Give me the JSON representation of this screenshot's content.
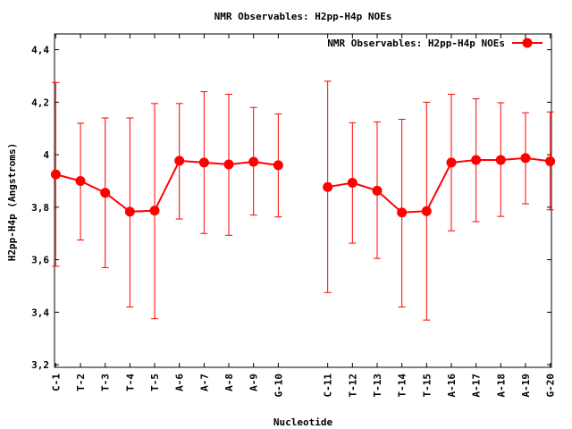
{
  "chart_data": {
    "type": "line",
    "title": "NMR Observables: H2pp-H4p NOEs",
    "xlabel": "Nucleotide",
    "ylabel": "H2pp-H4p (Angstroms)",
    "ylim": [
      3.2,
      4.45
    ],
    "yticks": [
      3.2,
      3.4,
      3.6,
      3.8,
      4.0,
      4.2,
      4.4
    ],
    "ytick_labels": [
      "3,2",
      "3,4",
      "3,6",
      "3,8",
      "4",
      "4,2",
      "4,4"
    ],
    "grid": false,
    "legend_position": "top-right",
    "color": "#ff0000",
    "categories": [
      "C-1",
      "T-2",
      "T-3",
      "T-4",
      "T-5",
      "A-6",
      "A-7",
      "A-8",
      "A-9",
      "G-10",
      "C-11",
      "T-12",
      "T-13",
      "T-14",
      "T-15",
      "A-16",
      "A-17",
      "A-18",
      "A-19",
      "G-20"
    ],
    "series": [
      {
        "name": "NMR Observables: H2pp-H4p NOEs",
        "segments": [
          [
            {
              "x": 1,
              "y": 3.925,
              "low": 3.575,
              "high": 4.275
            },
            {
              "x": 2,
              "y": 3.9,
              "low": 3.675,
              "high": 4.12
            },
            {
              "x": 3,
              "y": 3.855,
              "low": 3.57,
              "high": 4.14
            },
            {
              "x": 4,
              "y": 3.783,
              "low": 3.42,
              "high": 4.14
            },
            {
              "x": 5,
              "y": 3.787,
              "low": 3.375,
              "high": 4.195
            },
            {
              "x": 6,
              "y": 3.977,
              "low": 3.755,
              "high": 4.195
            },
            {
              "x": 7,
              "y": 3.97,
              "low": 3.7,
              "high": 4.24
            },
            {
              "x": 8,
              "y": 3.963,
              "low": 3.693,
              "high": 4.23
            },
            {
              "x": 9,
              "y": 3.973,
              "low": 3.77,
              "high": 4.18
            },
            {
              "x": 10,
              "y": 3.96,
              "low": 3.763,
              "high": 4.155
            }
          ],
          [
            {
              "x": 12,
              "y": 3.877,
              "low": 3.475,
              "high": 4.28
            },
            {
              "x": 13,
              "y": 3.893,
              "low": 3.663,
              "high": 4.122
            },
            {
              "x": 14,
              "y": 3.863,
              "low": 3.605,
              "high": 4.125
            },
            {
              "x": 15,
              "y": 3.78,
              "low": 3.42,
              "high": 4.135
            },
            {
              "x": 16,
              "y": 3.785,
              "low": 3.37,
              "high": 4.2
            },
            {
              "x": 17,
              "y": 3.97,
              "low": 3.71,
              "high": 4.23
            },
            {
              "x": 18,
              "y": 3.98,
              "low": 3.745,
              "high": 4.213
            },
            {
              "x": 19,
              "y": 3.98,
              "low": 3.765,
              "high": 4.198
            },
            {
              "x": 20,
              "y": 3.987,
              "low": 3.813,
              "high": 4.16
            },
            {
              "x": 21,
              "y": 3.975,
              "low": 3.79,
              "high": 4.163
            }
          ]
        ]
      }
    ]
  }
}
